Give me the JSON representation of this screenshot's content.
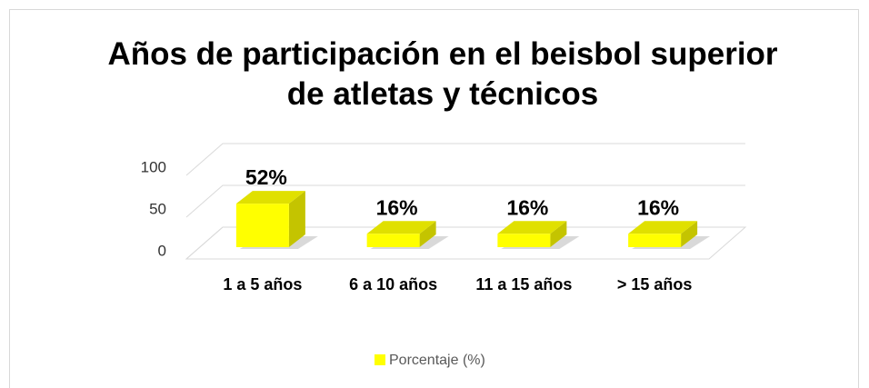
{
  "chart_data": {
    "type": "bar3d",
    "title": "Años de participación en el beisbol superior de atletas y técnicos",
    "categories": [
      "1 a 5 años",
      "6 a 10 años",
      "11 a 15 años",
      "> 15 años"
    ],
    "series": [
      {
        "name": "Porcentaje (%)",
        "color": "#ffff00",
        "values": [
          52,
          16,
          16,
          16
        ],
        "value_labels": [
          "52%",
          "16%",
          "16%",
          "16%"
        ]
      }
    ],
    "ylim": [
      0,
      100
    ],
    "yticks": [
      0,
      50,
      100
    ],
    "grid": true,
    "legend": "bottom"
  }
}
